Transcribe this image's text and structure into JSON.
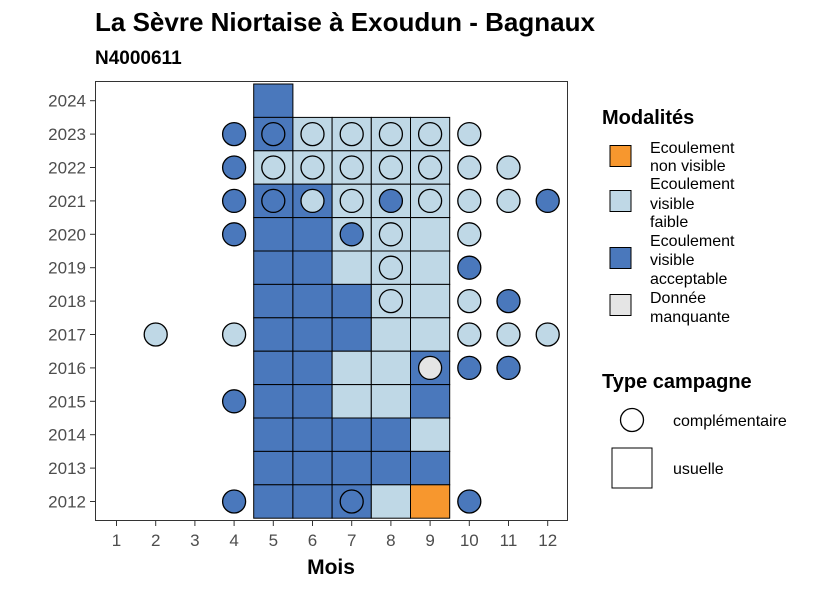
{
  "chart_data": {
    "type": "heatmap",
    "title": "La Sèvre Niortaise à Exoudun - Bagnaux",
    "subtitle": "N4000611",
    "xlabel": "Mois",
    "ylabel": "",
    "x_ticks": [
      "1",
      "2",
      "3",
      "4",
      "5",
      "6",
      "7",
      "8",
      "9",
      "10",
      "11",
      "12"
    ],
    "y_ticks": [
      "2012",
      "2013",
      "2014",
      "2015",
      "2016",
      "2017",
      "2018",
      "2019",
      "2020",
      "2021",
      "2022",
      "2023",
      "2024"
    ],
    "xlim": [
      0.5,
      12.5
    ],
    "ylim": [
      2011.5,
      2024.5
    ],
    "grid": false,
    "legend_position": "right",
    "colors": {
      "non_visible": "#F7972E",
      "faible": "#BFD8E6",
      "acceptable": "#4A78BC",
      "manquante": "#E5E5E5"
    },
    "legend_modalites": {
      "title": "Modalités",
      "items": [
        {
          "key": "non_visible",
          "lines": [
            "Ecoulement",
            "non visible"
          ]
        },
        {
          "key": "faible",
          "lines": [
            "Ecoulement",
            "visible",
            "faible"
          ]
        },
        {
          "key": "acceptable",
          "lines": [
            "Ecoulement",
            "visible",
            "acceptable"
          ]
        },
        {
          "key": "manquante",
          "lines": [
            "Donnée",
            "manquante"
          ]
        }
      ]
    },
    "legend_type": {
      "title": "Type campagne",
      "items": [
        {
          "shape": "circle",
          "label": "complémentaire"
        },
        {
          "shape": "square",
          "label": "usuelle"
        }
      ]
    },
    "usuelle": [
      {
        "year": 2024,
        "month": 5,
        "value": "acceptable"
      },
      {
        "year": 2023,
        "month": 5,
        "value": "acceptable"
      },
      {
        "year": 2023,
        "month": 6,
        "value": "faible"
      },
      {
        "year": 2023,
        "month": 7,
        "value": "faible"
      },
      {
        "year": 2023,
        "month": 8,
        "value": "faible"
      },
      {
        "year": 2023,
        "month": 9,
        "value": "faible"
      },
      {
        "year": 2022,
        "month": 5,
        "value": "faible"
      },
      {
        "year": 2022,
        "month": 6,
        "value": "faible"
      },
      {
        "year": 2022,
        "month": 7,
        "value": "faible"
      },
      {
        "year": 2022,
        "month": 8,
        "value": "faible"
      },
      {
        "year": 2022,
        "month": 9,
        "value": "faible"
      },
      {
        "year": 2021,
        "month": 5,
        "value": "acceptable"
      },
      {
        "year": 2021,
        "month": 6,
        "value": "acceptable"
      },
      {
        "year": 2021,
        "month": 7,
        "value": "faible"
      },
      {
        "year": 2021,
        "month": 8,
        "value": "faible"
      },
      {
        "year": 2021,
        "month": 9,
        "value": "faible"
      },
      {
        "year": 2020,
        "month": 5,
        "value": "acceptable"
      },
      {
        "year": 2020,
        "month": 6,
        "value": "acceptable"
      },
      {
        "year": 2020,
        "month": 7,
        "value": "faible"
      },
      {
        "year": 2020,
        "month": 8,
        "value": "faible"
      },
      {
        "year": 2020,
        "month": 9,
        "value": "faible"
      },
      {
        "year": 2019,
        "month": 5,
        "value": "acceptable"
      },
      {
        "year": 2019,
        "month": 6,
        "value": "acceptable"
      },
      {
        "year": 2019,
        "month": 7,
        "value": "faible"
      },
      {
        "year": 2019,
        "month": 8,
        "value": "faible"
      },
      {
        "year": 2019,
        "month": 9,
        "value": "faible"
      },
      {
        "year": 2018,
        "month": 5,
        "value": "acceptable"
      },
      {
        "year": 2018,
        "month": 6,
        "value": "acceptable"
      },
      {
        "year": 2018,
        "month": 7,
        "value": "acceptable"
      },
      {
        "year": 2018,
        "month": 8,
        "value": "faible"
      },
      {
        "year": 2018,
        "month": 9,
        "value": "faible"
      },
      {
        "year": 2017,
        "month": 5,
        "value": "acceptable"
      },
      {
        "year": 2017,
        "month": 6,
        "value": "acceptable"
      },
      {
        "year": 2017,
        "month": 7,
        "value": "acceptable"
      },
      {
        "year": 2017,
        "month": 8,
        "value": "faible"
      },
      {
        "year": 2017,
        "month": 9,
        "value": "faible"
      },
      {
        "year": 2016,
        "month": 5,
        "value": "acceptable"
      },
      {
        "year": 2016,
        "month": 6,
        "value": "acceptable"
      },
      {
        "year": 2016,
        "month": 7,
        "value": "faible"
      },
      {
        "year": 2016,
        "month": 8,
        "value": "faible"
      },
      {
        "year": 2016,
        "month": 9,
        "value": "acceptable"
      },
      {
        "year": 2015,
        "month": 5,
        "value": "acceptable"
      },
      {
        "year": 2015,
        "month": 6,
        "value": "acceptable"
      },
      {
        "year": 2015,
        "month": 7,
        "value": "faible"
      },
      {
        "year": 2015,
        "month": 8,
        "value": "faible"
      },
      {
        "year": 2015,
        "month": 9,
        "value": "acceptable"
      },
      {
        "year": 2014,
        "month": 5,
        "value": "acceptable"
      },
      {
        "year": 2014,
        "month": 6,
        "value": "acceptable"
      },
      {
        "year": 2014,
        "month": 7,
        "value": "acceptable"
      },
      {
        "year": 2014,
        "month": 8,
        "value": "acceptable"
      },
      {
        "year": 2014,
        "month": 9,
        "value": "faible"
      },
      {
        "year": 2013,
        "month": 5,
        "value": "acceptable"
      },
      {
        "year": 2013,
        "month": 6,
        "value": "acceptable"
      },
      {
        "year": 2013,
        "month": 7,
        "value": "acceptable"
      },
      {
        "year": 2013,
        "month": 8,
        "value": "acceptable"
      },
      {
        "year": 2013,
        "month": 9,
        "value": "acceptable"
      },
      {
        "year": 2012,
        "month": 5,
        "value": "acceptable"
      },
      {
        "year": 2012,
        "month": 6,
        "value": "acceptable"
      },
      {
        "year": 2012,
        "month": 7,
        "value": "acceptable"
      },
      {
        "year": 2012,
        "month": 8,
        "value": "faible"
      },
      {
        "year": 2012,
        "month": 9,
        "value": "non_visible"
      }
    ],
    "complementaire": [
      {
        "year": 2023,
        "month": 4,
        "value": "acceptable"
      },
      {
        "year": 2023,
        "month": 5,
        "value": "acceptable"
      },
      {
        "year": 2023,
        "month": 6,
        "value": "faible"
      },
      {
        "year": 2023,
        "month": 7,
        "value": "faible"
      },
      {
        "year": 2023,
        "month": 8,
        "value": "faible"
      },
      {
        "year": 2023,
        "month": 9,
        "value": "faible"
      },
      {
        "year": 2023,
        "month": 10,
        "value": "faible"
      },
      {
        "year": 2022,
        "month": 4,
        "value": "acceptable"
      },
      {
        "year": 2022,
        "month": 5,
        "value": "faible"
      },
      {
        "year": 2022,
        "month": 6,
        "value": "faible"
      },
      {
        "year": 2022,
        "month": 7,
        "value": "faible"
      },
      {
        "year": 2022,
        "month": 8,
        "value": "faible"
      },
      {
        "year": 2022,
        "month": 9,
        "value": "faible"
      },
      {
        "year": 2022,
        "month": 10,
        "value": "faible"
      },
      {
        "year": 2022,
        "month": 11,
        "value": "faible"
      },
      {
        "year": 2021,
        "month": 4,
        "value": "acceptable"
      },
      {
        "year": 2021,
        "month": 5,
        "value": "acceptable"
      },
      {
        "year": 2021,
        "month": 6,
        "value": "faible"
      },
      {
        "year": 2021,
        "month": 7,
        "value": "faible"
      },
      {
        "year": 2021,
        "month": 8,
        "value": "acceptable"
      },
      {
        "year": 2021,
        "month": 9,
        "value": "faible"
      },
      {
        "year": 2021,
        "month": 10,
        "value": "faible"
      },
      {
        "year": 2021,
        "month": 11,
        "value": "faible"
      },
      {
        "year": 2021,
        "month": 12,
        "value": "acceptable"
      },
      {
        "year": 2020,
        "month": 4,
        "value": "acceptable"
      },
      {
        "year": 2020,
        "month": 7,
        "value": "acceptable"
      },
      {
        "year": 2020,
        "month": 8,
        "value": "faible"
      },
      {
        "year": 2020,
        "month": 10,
        "value": "faible"
      },
      {
        "year": 2019,
        "month": 8,
        "value": "faible"
      },
      {
        "year": 2019,
        "month": 10,
        "value": "acceptable"
      },
      {
        "year": 2018,
        "month": 8,
        "value": "faible"
      },
      {
        "year": 2018,
        "month": 10,
        "value": "faible"
      },
      {
        "year": 2018,
        "month": 11,
        "value": "acceptable"
      },
      {
        "year": 2017,
        "month": 2,
        "value": "faible"
      },
      {
        "year": 2017,
        "month": 4,
        "value": "faible"
      },
      {
        "year": 2017,
        "month": 10,
        "value": "faible"
      },
      {
        "year": 2017,
        "month": 11,
        "value": "faible"
      },
      {
        "year": 2017,
        "month": 12,
        "value": "faible"
      },
      {
        "year": 2016,
        "month": 9,
        "value": "manquante"
      },
      {
        "year": 2016,
        "month": 10,
        "value": "acceptable"
      },
      {
        "year": 2016,
        "month": 11,
        "value": "acceptable"
      },
      {
        "year": 2015,
        "month": 4,
        "value": "acceptable"
      },
      {
        "year": 2012,
        "month": 4,
        "value": "acceptable"
      },
      {
        "year": 2012,
        "month": 7,
        "value": "acceptable"
      },
      {
        "year": 2012,
        "month": 10,
        "value": "acceptable"
      }
    ]
  }
}
